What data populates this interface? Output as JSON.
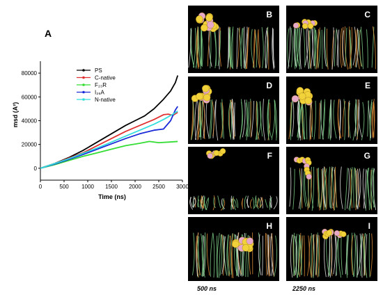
{
  "chart_data": {
    "type": "line",
    "panel_label": "A",
    "xlabel": "Time (ns)",
    "ylabel": "msd (A²)",
    "xlim": [
      0,
      3000
    ],
    "ylim": [
      -10000,
      90000
    ],
    "xticks": [
      "0",
      "500",
      "1000",
      "1500",
      "2000",
      "2500",
      "3000"
    ],
    "yticks": [
      "0",
      "20000",
      "40000",
      "60000",
      "80000"
    ],
    "legend_placement": "top-right",
    "series": [
      {
        "name": "PS",
        "color": "#000000",
        "x": [
          0,
          300,
          600,
          900,
          1200,
          1500,
          1800,
          2000,
          2200,
          2400,
          2600,
          2750,
          2850,
          2900
        ],
        "y": [
          0,
          4000,
          9000,
          15000,
          22000,
          29000,
          36000,
          40000,
          44000,
          50000,
          58000,
          65000,
          72000,
          78000
        ]
      },
      {
        "name": "C-native",
        "color": "#e03030",
        "x": [
          0,
          300,
          600,
          900,
          1200,
          1500,
          1800,
          2100,
          2400,
          2600,
          2700,
          2800,
          2900
        ],
        "y": [
          0,
          4000,
          8500,
          13000,
          19000,
          25000,
          31000,
          36000,
          41000,
          45000,
          45500,
          44500,
          47000
        ]
      },
      {
        "name": "F₂₃R",
        "color": "#33dd33",
        "x": [
          0,
          300,
          600,
          900,
          1200,
          1500,
          1800,
          2100,
          2300,
          2500,
          2700,
          2900
        ],
        "y": [
          0,
          3000,
          6500,
          10000,
          13000,
          16000,
          19000,
          21000,
          22500,
          21500,
          22000,
          22500
        ]
      },
      {
        "name": "I₂₆A",
        "color": "#1a2ad8",
        "x": [
          0,
          300,
          600,
          900,
          1200,
          1500,
          1800,
          2100,
          2400,
          2600,
          2750,
          2850,
          2900
        ],
        "y": [
          0,
          3500,
          7500,
          11500,
          16000,
          20500,
          25000,
          29000,
          32000,
          33000,
          40000,
          49000,
          52000
        ]
      },
      {
        "name": "N-native",
        "color": "#33dddd",
        "x": [
          0,
          300,
          600,
          900,
          1200,
          1500,
          1800,
          2100,
          2400,
          2600,
          2800,
          2900
        ],
        "y": [
          0,
          4000,
          8000,
          12500,
          17000,
          22000,
          27000,
          32000,
          37000,
          41000,
          45500,
          48000
        ]
      }
    ]
  },
  "panels": [
    {
      "label": "B"
    },
    {
      "label": "C"
    },
    {
      "label": "D"
    },
    {
      "label": "E"
    },
    {
      "label": "F"
    },
    {
      "label": "G"
    },
    {
      "label": "H"
    },
    {
      "label": "I"
    }
  ],
  "captions": {
    "left": "500 ns",
    "right": "2250 ns"
  },
  "colors": {
    "membrane_green": "#7fd08a",
    "membrane_orange": "#e0903a",
    "membrane_white": "#e8e8e8",
    "peptide_yellow": "#f2d23a",
    "peptide_pink": "#e6a8c8"
  }
}
